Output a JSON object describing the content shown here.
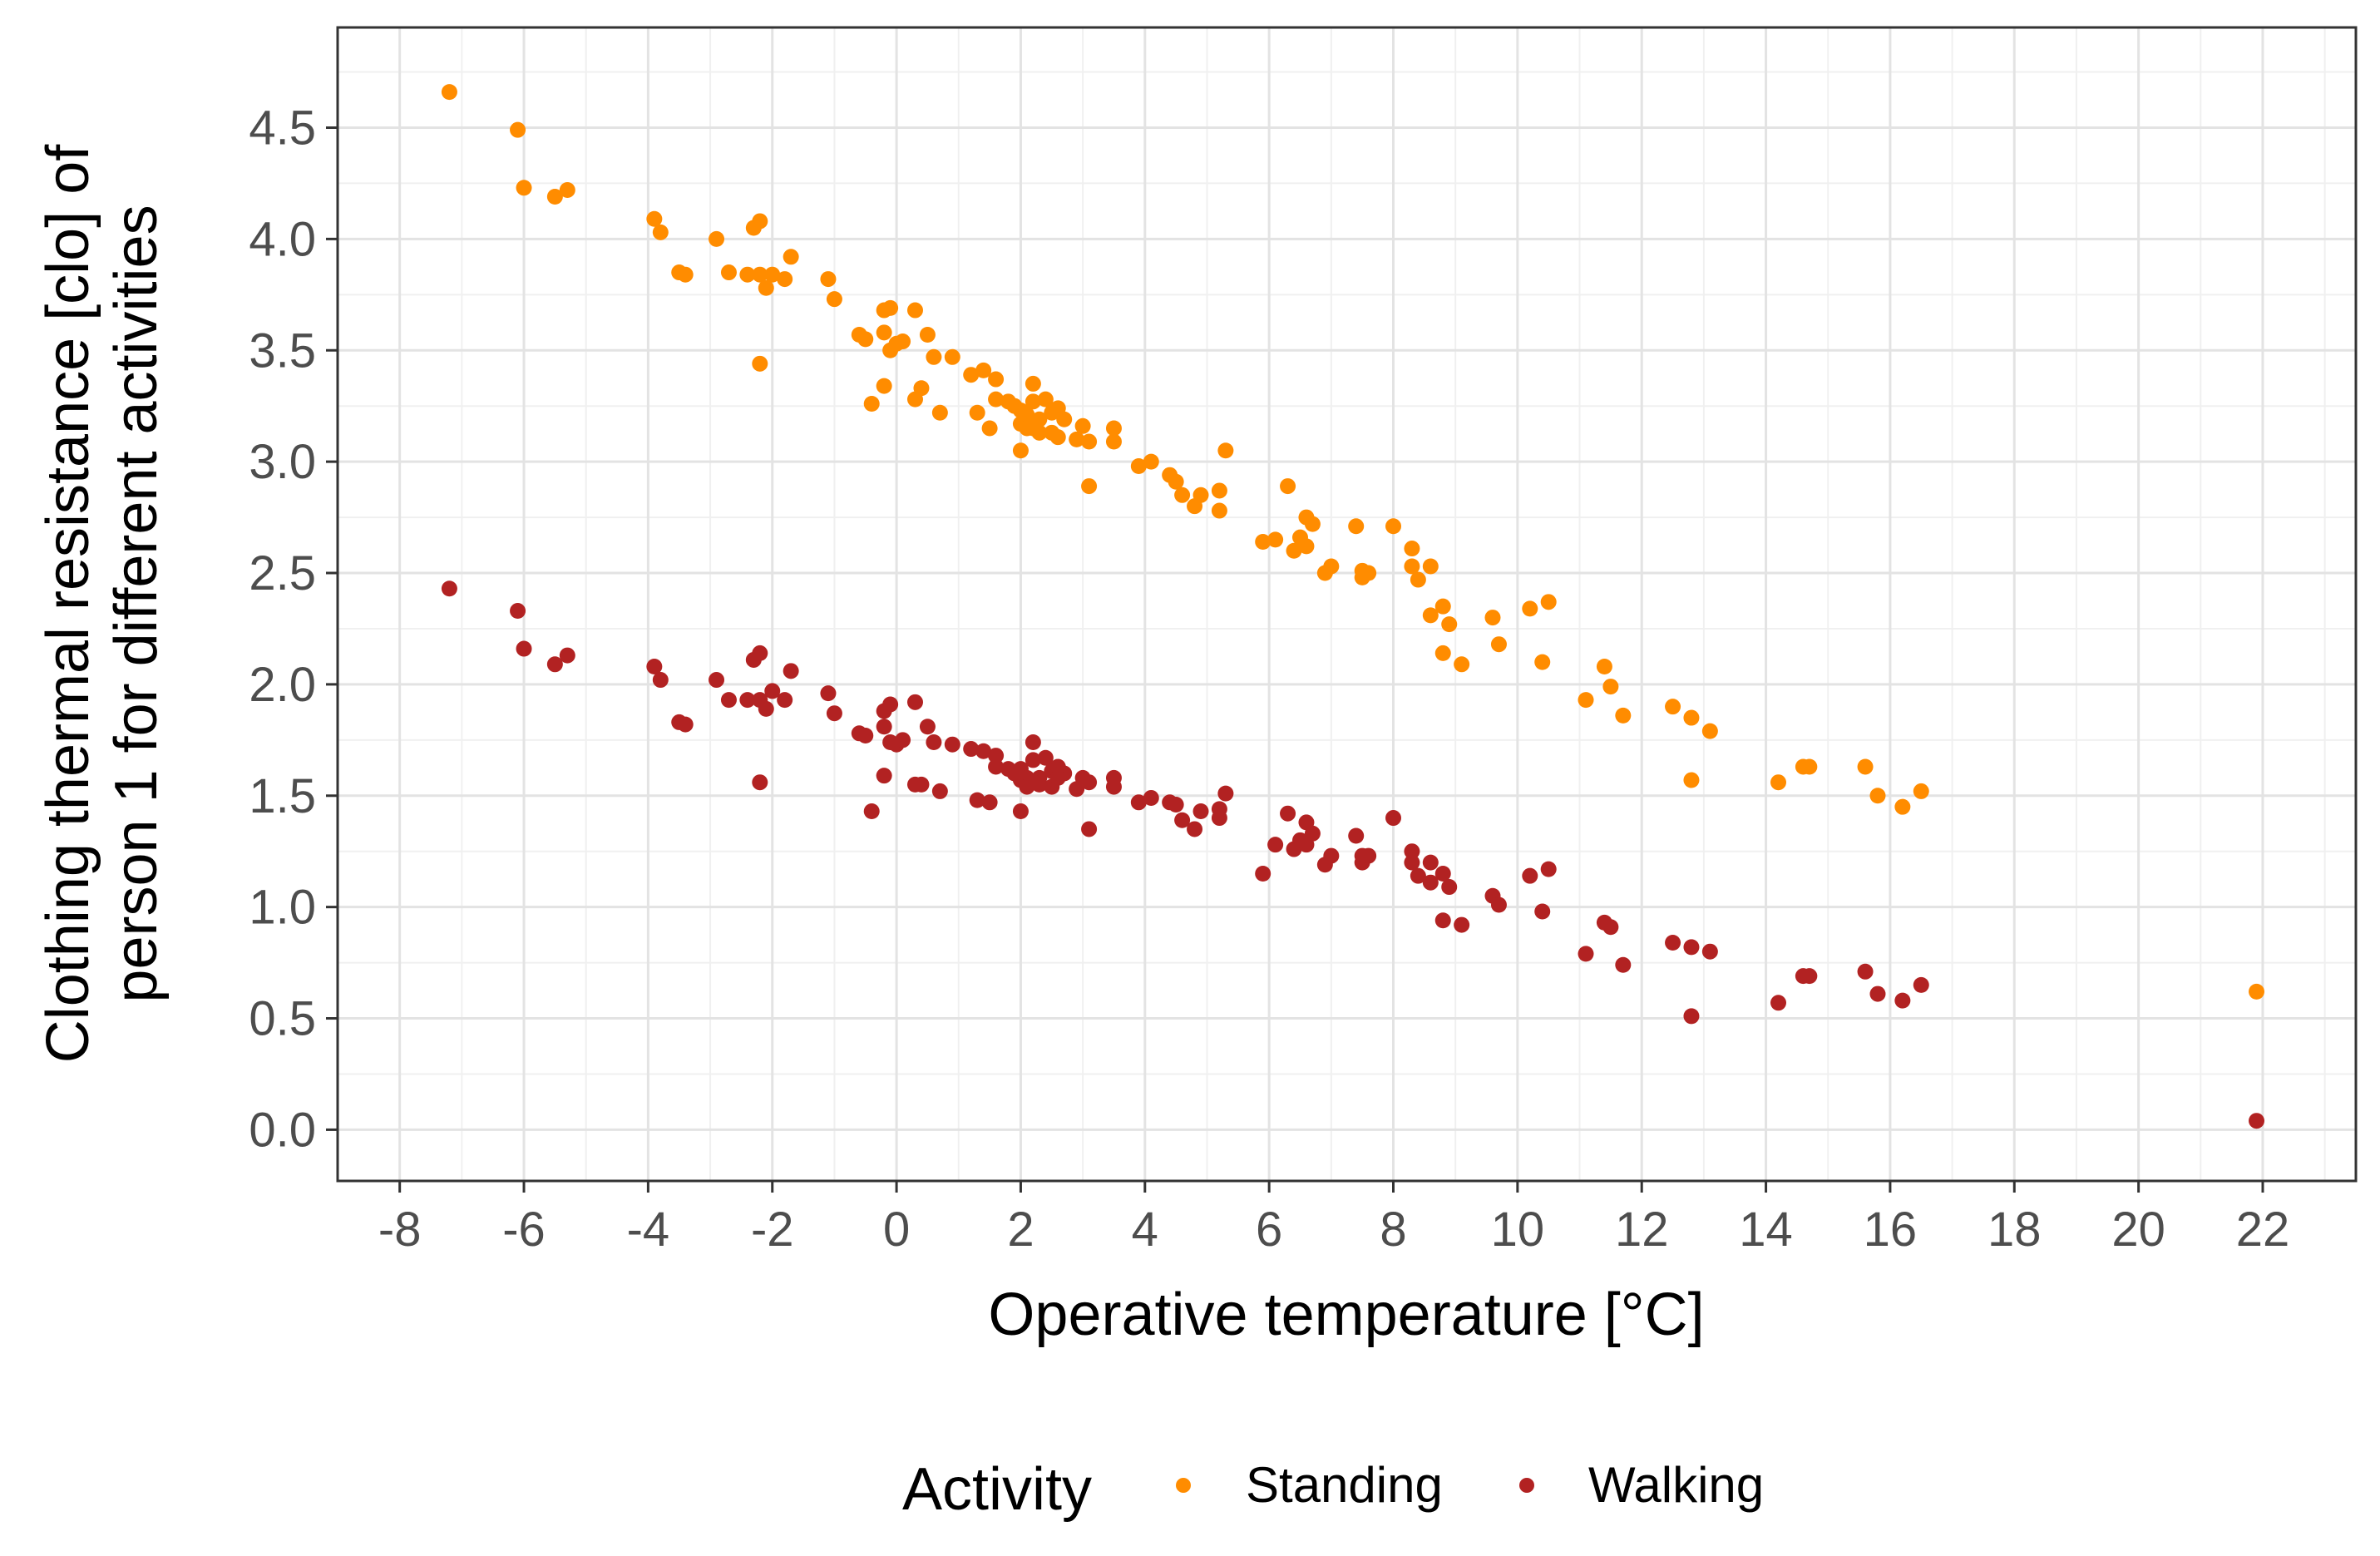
{
  "chart_data": {
    "type": "scatter",
    "xlabel": "Operative temperature [°C]",
    "ylabel_lines": [
      "Clothing thermal resistance [clo] of",
      "person 1 for different activities"
    ],
    "xlim": [
      -9.0,
      23.5
    ],
    "ylim": [
      -0.23,
      4.95
    ],
    "x_ticks": [
      -8,
      -6,
      -4,
      -2,
      0,
      2,
      4,
      6,
      8,
      10,
      12,
      14,
      16,
      18,
      20,
      22
    ],
    "x_tick_labels": [
      "-8",
      "-6",
      "-4",
      "-2",
      "0",
      "2",
      "4",
      "6",
      "8",
      "10",
      "12",
      "14",
      "16",
      "18",
      "20",
      "22"
    ],
    "y_ticks": [
      0.0,
      0.5,
      1.0,
      1.5,
      2.0,
      2.5,
      3.0,
      3.5,
      4.0,
      4.5
    ],
    "y_tick_labels": [
      "0.0",
      "0.5",
      "1.0",
      "1.5",
      "2.0",
      "2.5",
      "3.0",
      "3.5",
      "4.0",
      "4.5"
    ],
    "grid": true,
    "legend": {
      "title": "Activity",
      "position": "bottom",
      "entries": [
        {
          "label": "Standing",
          "color": "#FF8C00"
        },
        {
          "label": "Walking",
          "color": "#B22222"
        }
      ]
    },
    "series": [
      {
        "name": "Standing",
        "color": "#FF8C00",
        "points": [
          [
            -7.2,
            4.66
          ],
          [
            -6.1,
            4.49
          ],
          [
            -6.0,
            4.23
          ],
          [
            -5.5,
            4.19
          ],
          [
            -5.3,
            4.22
          ],
          [
            -3.9,
            4.09
          ],
          [
            -3.8,
            4.03
          ],
          [
            -3.5,
            3.85
          ],
          [
            -3.4,
            3.84
          ],
          [
            -2.9,
            4.0
          ],
          [
            -2.7,
            3.85
          ],
          [
            -2.4,
            3.84
          ],
          [
            -2.3,
            4.05
          ],
          [
            -2.2,
            4.08
          ],
          [
            -2.2,
            3.84
          ],
          [
            -2.1,
            3.78
          ],
          [
            -2.0,
            3.84
          ],
          [
            -2.2,
            3.44
          ],
          [
            -1.8,
            3.82
          ],
          [
            -1.7,
            3.92
          ],
          [
            -1.1,
            3.82
          ],
          [
            -1.0,
            3.73
          ],
          [
            -0.6,
            3.57
          ],
          [
            -0.5,
            3.55
          ],
          [
            -0.2,
            3.68
          ],
          [
            -0.1,
            3.69
          ],
          [
            0.0,
            3.53
          ],
          [
            0.1,
            3.54
          ],
          [
            -0.2,
            3.58
          ],
          [
            -0.1,
            3.5
          ],
          [
            0.3,
            3.68
          ],
          [
            0.5,
            3.57
          ],
          [
            0.6,
            3.47
          ],
          [
            0.9,
            3.47
          ],
          [
            -0.4,
            3.26
          ],
          [
            -0.2,
            3.34
          ],
          [
            0.3,
            3.28
          ],
          [
            0.4,
            3.33
          ],
          [
            0.7,
            3.22
          ],
          [
            1.2,
            3.39
          ],
          [
            1.3,
            3.22
          ],
          [
            1.4,
            3.41
          ],
          [
            1.5,
            3.15
          ],
          [
            1.6,
            3.37
          ],
          [
            1.6,
            3.28
          ],
          [
            1.8,
            3.27
          ],
          [
            1.9,
            3.25
          ],
          [
            2.0,
            3.23
          ],
          [
            2.1,
            3.21
          ],
          [
            2.2,
            3.27
          ],
          [
            2.3,
            3.19
          ],
          [
            2.2,
            3.15
          ],
          [
            2.4,
            3.28
          ],
          [
            2.5,
            3.22
          ],
          [
            2.6,
            3.24
          ],
          [
            2.7,
            3.19
          ],
          [
            2.2,
            3.35
          ],
          [
            2.0,
            3.17
          ],
          [
            2.1,
            3.15
          ],
          [
            2.3,
            3.13
          ],
          [
            2.5,
            3.13
          ],
          [
            2.6,
            3.11
          ],
          [
            2.0,
            3.05
          ],
          [
            2.9,
            3.1
          ],
          [
            3.0,
            3.16
          ],
          [
            3.1,
            3.09
          ],
          [
            3.5,
            3.15
          ],
          [
            3.5,
            3.09
          ],
          [
            3.1,
            2.89
          ],
          [
            3.9,
            2.98
          ],
          [
            4.1,
            3.0
          ],
          [
            4.4,
            2.94
          ],
          [
            4.5,
            2.91
          ],
          [
            4.6,
            2.85
          ],
          [
            4.8,
            2.8
          ],
          [
            4.9,
            2.85
          ],
          [
            5.2,
            2.87
          ],
          [
            5.2,
            2.78
          ],
          [
            5.3,
            3.05
          ],
          [
            5.9,
            2.64
          ],
          [
            6.1,
            2.65
          ],
          [
            6.3,
            2.89
          ],
          [
            6.4,
            2.6
          ],
          [
            6.5,
            2.66
          ],
          [
            6.6,
            2.75
          ],
          [
            6.7,
            2.72
          ],
          [
            6.6,
            2.62
          ],
          [
            6.9,
            2.5
          ],
          [
            7.0,
            2.53
          ],
          [
            7.4,
            2.71
          ],
          [
            7.5,
            2.48
          ],
          [
            7.6,
            2.5
          ],
          [
            7.5,
            2.51
          ],
          [
            8.0,
            2.71
          ],
          [
            8.3,
            2.61
          ],
          [
            8.3,
            2.53
          ],
          [
            8.4,
            2.47
          ],
          [
            8.6,
            2.53
          ],
          [
            8.6,
            2.31
          ],
          [
            8.8,
            2.35
          ],
          [
            8.9,
            2.27
          ],
          [
            8.8,
            2.14
          ],
          [
            9.1,
            2.09
          ],
          [
            9.6,
            2.3
          ],
          [
            9.7,
            2.18
          ],
          [
            10.2,
            2.34
          ],
          [
            10.5,
            2.37
          ],
          [
            10.4,
            2.1
          ],
          [
            11.1,
            1.93
          ],
          [
            11.4,
            2.08
          ],
          [
            11.5,
            1.99
          ],
          [
            11.7,
            1.86
          ],
          [
            12.5,
            1.9
          ],
          [
            12.8,
            1.85
          ],
          [
            13.1,
            1.79
          ],
          [
            12.8,
            1.57
          ],
          [
            14.2,
            1.56
          ],
          [
            14.6,
            1.63
          ],
          [
            14.7,
            1.63
          ],
          [
            15.6,
            1.63
          ],
          [
            15.8,
            1.5
          ],
          [
            16.2,
            1.45
          ],
          [
            16.5,
            1.52
          ],
          [
            21.9,
            0.62
          ]
        ]
      },
      {
        "name": "Walking",
        "color": "#B22222",
        "points": [
          [
            -7.2,
            2.43
          ],
          [
            -6.1,
            2.33
          ],
          [
            -6.0,
            2.16
          ],
          [
            -5.5,
            2.09
          ],
          [
            -5.3,
            2.13
          ],
          [
            -3.9,
            2.08
          ],
          [
            -3.8,
            2.02
          ],
          [
            -3.5,
            1.83
          ],
          [
            -3.4,
            1.82
          ],
          [
            -2.9,
            2.02
          ],
          [
            -2.7,
            1.93
          ],
          [
            -2.4,
            1.93
          ],
          [
            -2.3,
            2.11
          ],
          [
            -2.2,
            2.14
          ],
          [
            -2.2,
            1.93
          ],
          [
            -2.1,
            1.89
          ],
          [
            -2.0,
            1.97
          ],
          [
            -2.2,
            1.56
          ],
          [
            -1.8,
            1.93
          ],
          [
            -1.7,
            2.06
          ],
          [
            -1.1,
            1.96
          ],
          [
            -1.0,
            1.87
          ],
          [
            -0.6,
            1.78
          ],
          [
            -0.5,
            1.77
          ],
          [
            -0.2,
            1.88
          ],
          [
            -0.1,
            1.91
          ],
          [
            0.0,
            1.73
          ],
          [
            0.1,
            1.75
          ],
          [
            -0.2,
            1.81
          ],
          [
            -0.1,
            1.74
          ],
          [
            0.3,
            1.92
          ],
          [
            0.5,
            1.81
          ],
          [
            0.6,
            1.74
          ],
          [
            0.9,
            1.73
          ],
          [
            -0.4,
            1.43
          ],
          [
            -0.2,
            1.59
          ],
          [
            0.3,
            1.55
          ],
          [
            0.4,
            1.55
          ],
          [
            0.7,
            1.52
          ],
          [
            1.2,
            1.71
          ],
          [
            1.3,
            1.48
          ],
          [
            1.4,
            1.7
          ],
          [
            1.5,
            1.47
          ],
          [
            1.6,
            1.68
          ],
          [
            1.6,
            1.63
          ],
          [
            1.8,
            1.62
          ],
          [
            1.9,
            1.6
          ],
          [
            2.0,
            1.62
          ],
          [
            2.1,
            1.58
          ],
          [
            2.2,
            1.66
          ],
          [
            2.3,
            1.58
          ],
          [
            2.2,
            1.56
          ],
          [
            2.4,
            1.67
          ],
          [
            2.5,
            1.61
          ],
          [
            2.6,
            1.63
          ],
          [
            2.7,
            1.6
          ],
          [
            2.2,
            1.74
          ],
          [
            2.0,
            1.57
          ],
          [
            2.1,
            1.54
          ],
          [
            2.3,
            1.55
          ],
          [
            2.5,
            1.54
          ],
          [
            2.6,
            1.58
          ],
          [
            2.0,
            1.43
          ],
          [
            2.9,
            1.53
          ],
          [
            3.0,
            1.58
          ],
          [
            3.1,
            1.56
          ],
          [
            3.5,
            1.58
          ],
          [
            3.5,
            1.54
          ],
          [
            3.1,
            1.35
          ],
          [
            3.9,
            1.47
          ],
          [
            4.1,
            1.49
          ],
          [
            4.4,
            1.47
          ],
          [
            4.5,
            1.46
          ],
          [
            4.6,
            1.39
          ],
          [
            4.8,
            1.35
          ],
          [
            4.9,
            1.43
          ],
          [
            5.2,
            1.44
          ],
          [
            5.2,
            1.4
          ],
          [
            5.3,
            1.51
          ],
          [
            5.9,
            1.15
          ],
          [
            6.1,
            1.28
          ],
          [
            6.3,
            1.42
          ],
          [
            6.4,
            1.26
          ],
          [
            6.5,
            1.3
          ],
          [
            6.6,
            1.38
          ],
          [
            6.7,
            1.33
          ],
          [
            6.6,
            1.28
          ],
          [
            6.9,
            1.19
          ],
          [
            7.0,
            1.23
          ],
          [
            7.4,
            1.32
          ],
          [
            7.5,
            1.2
          ],
          [
            7.6,
            1.23
          ],
          [
            7.5,
            1.23
          ],
          [
            8.0,
            1.4
          ],
          [
            8.3,
            1.25
          ],
          [
            8.3,
            1.2
          ],
          [
            8.4,
            1.14
          ],
          [
            8.6,
            1.2
          ],
          [
            8.6,
            1.11
          ],
          [
            8.8,
            1.15
          ],
          [
            8.9,
            1.09
          ],
          [
            8.8,
            0.94
          ],
          [
            9.1,
            0.92
          ],
          [
            9.6,
            1.05
          ],
          [
            9.7,
            1.01
          ],
          [
            10.2,
            1.14
          ],
          [
            10.5,
            1.17
          ],
          [
            10.4,
            0.98
          ],
          [
            11.1,
            0.79
          ],
          [
            11.4,
            0.93
          ],
          [
            11.5,
            0.91
          ],
          [
            11.7,
            0.74
          ],
          [
            12.5,
            0.84
          ],
          [
            12.8,
            0.82
          ],
          [
            13.1,
            0.8
          ],
          [
            12.8,
            0.51
          ],
          [
            14.2,
            0.57
          ],
          [
            14.6,
            0.69
          ],
          [
            14.7,
            0.69
          ],
          [
            15.6,
            0.71
          ],
          [
            15.8,
            0.61
          ],
          [
            16.2,
            0.58
          ],
          [
            16.5,
            0.65
          ],
          [
            21.9,
            0.04
          ]
        ]
      }
    ]
  }
}
